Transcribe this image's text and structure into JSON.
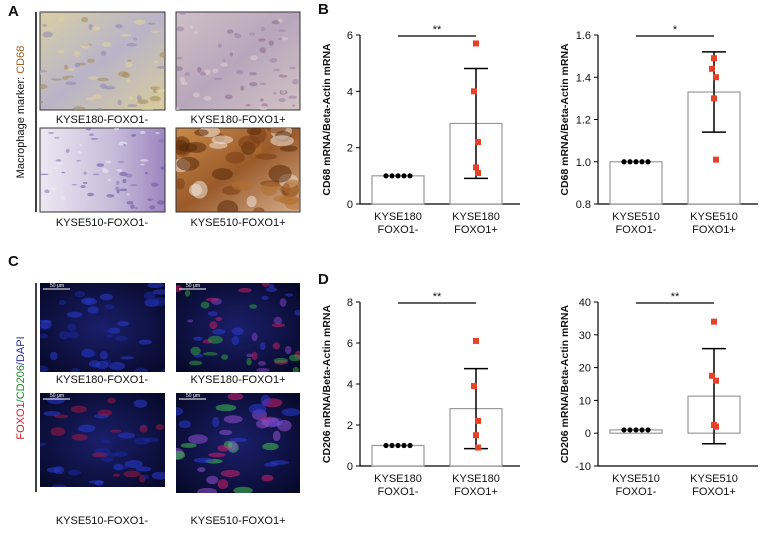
{
  "panel_labels": [
    "A",
    "B",
    "C",
    "D"
  ],
  "panel_A": {
    "side_label": [
      "Macrophage marker: ",
      "CD68"
    ],
    "captions": [
      "KYSE180-FOXO1-",
      "KYSE180-FOXO1+",
      "KYSE510-FOXO1-",
      "KYSE510-FOXO1+"
    ]
  },
  "panel_C": {
    "side_label": [
      "FOXO1",
      "/CD206",
      "/DAPI"
    ],
    "scale_label": "50 μm",
    "captions": [
      "KYSE180-FOXO1-",
      "KYSE180-FOXO1+",
      "KYSE510-FOXO1-",
      "KYSE510-FOXO1+"
    ]
  },
  "chart_data": [
    {
      "type": "bar",
      "y_label": "CD68 mRNA/Beta-Actin mRNA",
      "categories": [
        [
          "KYSE180",
          "FOXO1-"
        ],
        [
          "KYSE180",
          "FOXO1+"
        ]
      ],
      "values": [
        1.0,
        2.86
      ],
      "errors": [
        0,
        1.95
      ],
      "points": [
        [
          1,
          1,
          1,
          1,
          1
        ],
        [
          5.7,
          4.0,
          2.2,
          1.3,
          1.1
        ]
      ],
      "point_colors": [
        "#000000",
        "#e8412a"
      ],
      "color": "#ffffff",
      "edge_color": "#9a9a9a",
      "significance": "**",
      "ylim": [
        0,
        6
      ],
      "yticks": [
        0,
        2,
        4,
        6
      ]
    },
    {
      "type": "bar",
      "y_label": "CD68 mRNA/Beta-Actin mRNA",
      "categories": [
        [
          "KYSE510",
          "FOXO1-"
        ],
        [
          "KYSE510",
          "FOXO1+"
        ]
      ],
      "values": [
        1.0,
        1.33
      ],
      "errors": [
        0,
        0.19
      ],
      "points": [
        [
          1,
          1,
          1,
          1,
          1
        ],
        [
          1.49,
          1.44,
          1.4,
          1.3,
          1.01
        ]
      ],
      "point_colors": [
        "#000000",
        "#e8412a"
      ],
      "color": "#ffffff",
      "edge_color": "#9a9a9a",
      "significance": "*",
      "ylim": [
        0.8,
        1.6
      ],
      "yticks": [
        {
          "value": 0.8,
          "label": "0.8"
        },
        {
          "value": 1.0,
          "label": "1.0"
        },
        {
          "value": 1.2,
          "label": "1.2"
        },
        {
          "value": 1.4,
          "label": "1.4"
        },
        {
          "value": 1.6,
          "label": "1.6"
        }
      ]
    },
    {
      "type": "bar",
      "y_label": "CD206 mRNA/Beta-Actin mRNA",
      "categories": [
        [
          "KYSE180",
          "FOXO1-"
        ],
        [
          "KYSE180",
          "FOXO1+"
        ]
      ],
      "values": [
        1.0,
        2.8
      ],
      "errors": [
        0,
        1.95
      ],
      "points": [
        [
          1,
          1,
          1,
          1,
          1
        ],
        [
          6.1,
          3.9,
          2.2,
          1.5,
          0.9
        ]
      ],
      "point_colors": [
        "#000000",
        "#e8412a"
      ],
      "color": "#ffffff",
      "edge_color": "#9a9a9a",
      "significance": "**",
      "ylim": [
        0,
        8
      ],
      "yticks": [
        0,
        2,
        4,
        6,
        8
      ]
    },
    {
      "type": "bar",
      "y_label": "CD206 mRNA/Beta-Actin mRNA",
      "categories": [
        [
          "KYSE510",
          "FOXO1-"
        ],
        [
          "KYSE510",
          "FOXO1+"
        ]
      ],
      "values": [
        1.0,
        11.3
      ],
      "errors": [
        0,
        14.5
      ],
      "points": [
        [
          1,
          1,
          1,
          1,
          1
        ],
        [
          34,
          17.5,
          16,
          2.5,
          2
        ]
      ],
      "point_colors": [
        "#000000",
        "#e8412a"
      ],
      "color": "#ffffff",
      "edge_color": "#9a9a9a",
      "significance": "**",
      "ylim": [
        -10,
        40
      ],
      "yticks": [
        -10,
        0,
        10,
        20,
        30,
        40
      ]
    }
  ]
}
